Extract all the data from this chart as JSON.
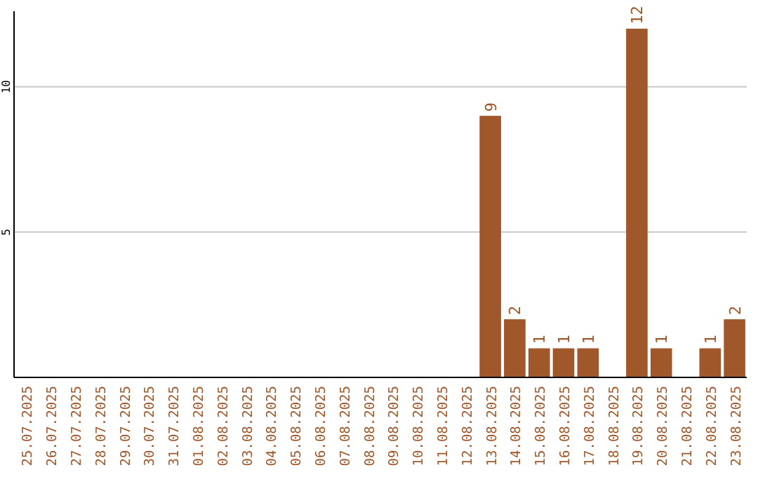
{
  "chart_data": {
    "type": "bar",
    "categories": [
      "25.07.2025",
      "26.07.2025",
      "27.07.2025",
      "28.07.2025",
      "29.07.2025",
      "30.07.2025",
      "31.07.2025",
      "01.08.2025",
      "02.08.2025",
      "03.08.2025",
      "04.08.2025",
      "05.08.2025",
      "06.08.2025",
      "07.08.2025",
      "08.08.2025",
      "09.08.2025",
      "10.08.2025",
      "11.08.2025",
      "12.08.2025",
      "13.08.2025",
      "14.08.2025",
      "15.08.2025",
      "16.08.2025",
      "17.08.2025",
      "18.08.2025",
      "19.08.2025",
      "20.08.2025",
      "21.08.2025",
      "22.08.2025",
      "23.08.2025"
    ],
    "values": [
      0,
      0,
      0,
      0,
      0,
      0,
      0,
      0,
      0,
      0,
      0,
      0,
      0,
      0,
      0,
      0,
      0,
      0,
      0,
      9,
      2,
      1,
      1,
      1,
      0,
      12,
      1,
      0,
      1,
      2
    ],
    "value_labels": [
      null,
      null,
      null,
      null,
      null,
      null,
      null,
      null,
      null,
      null,
      null,
      null,
      null,
      null,
      null,
      null,
      null,
      null,
      null,
      "9",
      "2",
      "1",
      "1",
      "1",
      null,
      "12",
      "1",
      null,
      "1",
      "2"
    ],
    "color": "#a0582a",
    "ylim": [
      0,
      12.6
    ],
    "yticks": [
      5,
      10
    ],
    "grid": "y"
  }
}
